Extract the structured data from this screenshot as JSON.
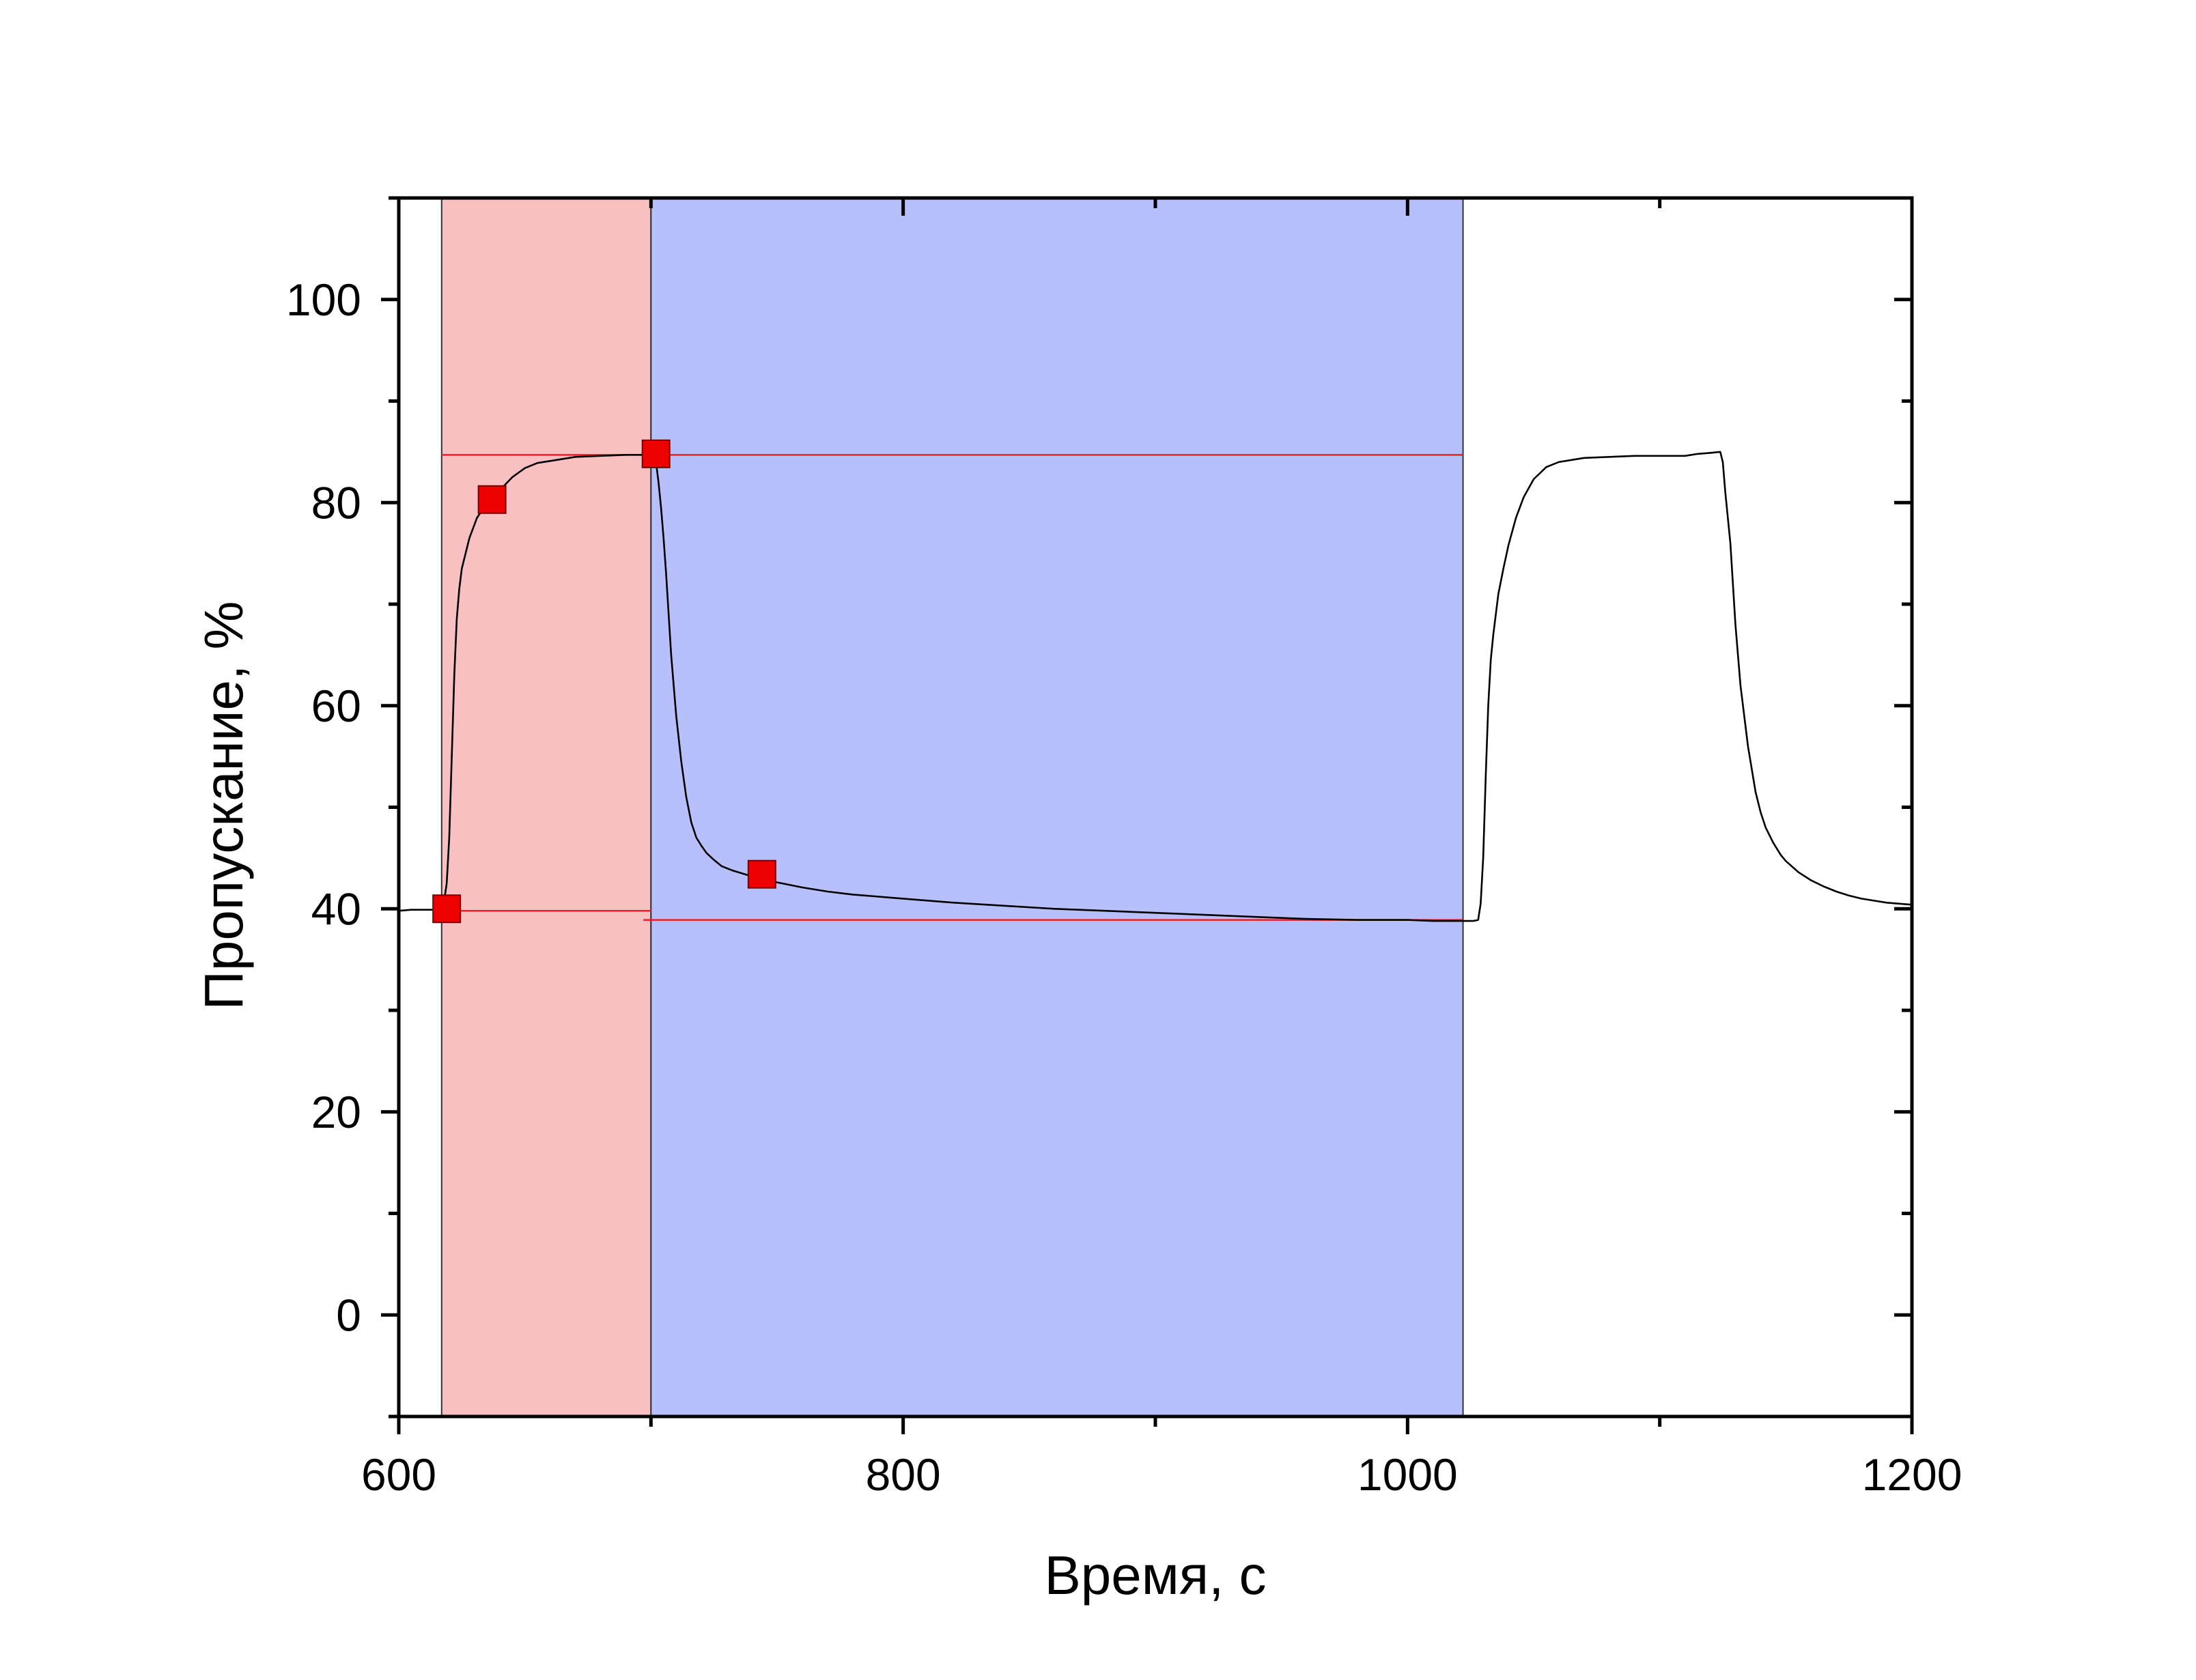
{
  "chart_data": {
    "type": "line",
    "title": "",
    "xlabel": "Время, с",
    "ylabel": "Пропускание, %",
    "xlim": [
      600,
      1200
    ],
    "ylim": [
      -10,
      110
    ],
    "x_ticks": [
      600,
      800,
      1000,
      1200
    ],
    "y_ticks": [
      0,
      20,
      40,
      60,
      80,
      100
    ],
    "x_minor_step": 100,
    "y_minor_step": 10,
    "grid": false,
    "legend": "none",
    "shaded_regions": [
      {
        "x0": 617,
        "x1": 700,
        "color": "#f9c0c2"
      },
      {
        "x0": 700,
        "x1": 1022,
        "color": "#b7c0fb"
      }
    ],
    "reference_lines": [
      {
        "y": 84.7,
        "x0": 617,
        "x1": 1022,
        "color": "#e8202a"
      },
      {
        "y": 39.8,
        "x0": 617,
        "x1": 700,
        "color": "#e8202a"
      },
      {
        "y": 38.9,
        "x0": 697,
        "x1": 1022,
        "color": "#e8202a"
      }
    ],
    "series": [
      {
        "color": "#000000",
        "x": [
          600,
          605,
          610,
          615,
          617,
          618,
          619,
          620,
          621,
          622,
          623,
          624,
          625,
          628,
          631,
          634,
          637,
          640,
          645,
          650,
          655,
          660,
          665,
          670,
          680,
          690,
          700,
          701,
          702,
          703,
          704,
          705,
          706,
          707,
          708,
          710,
          712,
          714,
          716,
          718,
          720,
          722,
          725,
          728,
          732,
          736,
          740,
          745,
          750,
          760,
          770,
          780,
          800,
          820,
          840,
          860,
          880,
          900,
          920,
          940,
          960,
          980,
          1000,
          1010,
          1020,
          1026,
          1028,
          1029,
          1030,
          1031,
          1032,
          1033,
          1034,
          1035,
          1036,
          1038,
          1040,
          1043,
          1046,
          1050,
          1055,
          1060,
          1065,
          1070,
          1080,
          1090,
          1100,
          1110,
          1115,
          1120,
          1124,
          1125,
          1126,
          1128,
          1130,
          1132,
          1135,
          1138,
          1140,
          1142,
          1145,
          1148,
          1150,
          1155,
          1160,
          1165,
          1170,
          1175,
          1180,
          1185,
          1190,
          1195,
          1200
        ],
        "y": [
          39.8,
          39.9,
          39.9,
          39.9,
          40.0,
          40.8,
          42.5,
          47.0,
          55.0,
          63.0,
          68.5,
          71.5,
          73.5,
          76.5,
          78.5,
          79.6,
          80.3,
          81.2,
          82.5,
          83.4,
          83.9,
          84.1,
          84.3,
          84.5,
          84.6,
          84.7,
          84.7,
          84.8,
          84.0,
          82.0,
          79.5,
          76.5,
          73.0,
          69.0,
          65.0,
          59.0,
          54.5,
          51.0,
          48.5,
          47.0,
          46.2,
          45.5,
          44.8,
          44.2,
          43.8,
          43.5,
          43.2,
          42.9,
          42.6,
          42.1,
          41.7,
          41.4,
          41.0,
          40.6,
          40.3,
          40.0,
          39.8,
          39.6,
          39.4,
          39.2,
          39.0,
          38.9,
          38.9,
          38.8,
          38.8,
          38.8,
          38.9,
          40.5,
          45.0,
          53.0,
          60.0,
          64.5,
          67.0,
          69.0,
          71.0,
          73.5,
          75.8,
          78.5,
          80.5,
          82.3,
          83.5,
          84.0,
          84.2,
          84.4,
          84.5,
          84.6,
          84.6,
          84.6,
          84.8,
          84.9,
          85.0,
          84.0,
          81.0,
          76.0,
          68.0,
          62.0,
          56.0,
          51.5,
          49.5,
          48.0,
          46.5,
          45.3,
          44.7,
          43.6,
          42.8,
          42.2,
          41.7,
          41.3,
          41.0,
          40.8,
          40.6,
          40.5,
          40.4
        ]
      }
    ],
    "markers": {
      "shape": "square",
      "color": "#ee0000",
      "points": [
        {
          "x": 619,
          "y": 40.0
        },
        {
          "x": 637,
          "y": 80.3
        },
        {
          "x": 702,
          "y": 84.8
        },
        {
          "x": 744,
          "y": 43.4
        }
      ]
    }
  }
}
